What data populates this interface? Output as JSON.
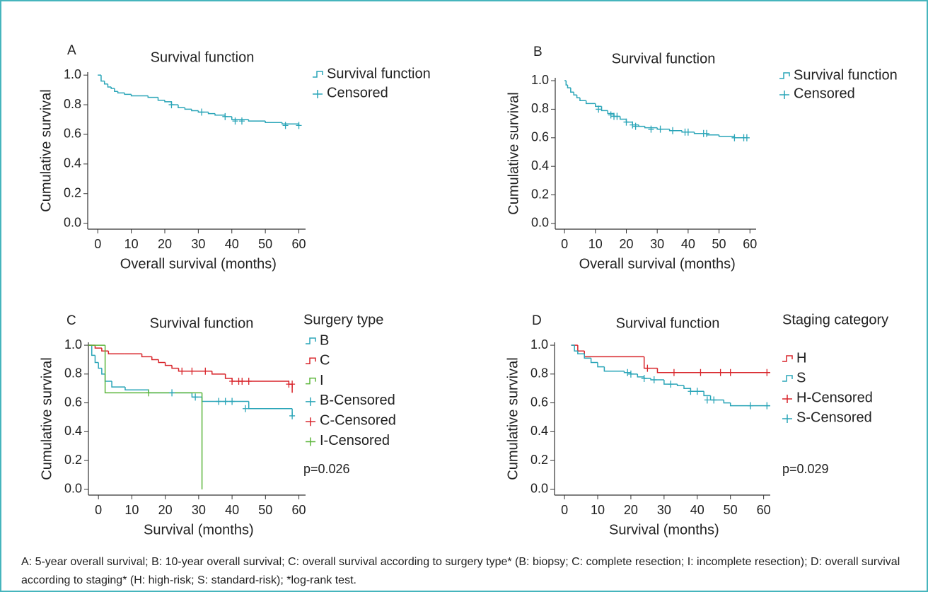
{
  "chart_data": [
    {
      "type": "step",
      "panel": "A",
      "title": "Survival function",
      "xlabel": "Overall survival (months)",
      "ylabel": "Cumulative survival",
      "xlim": [
        -3,
        62
      ],
      "ylim": [
        -0.04,
        1.02
      ],
      "xticks": [
        0,
        10,
        20,
        30,
        40,
        50,
        60
      ],
      "yticks": [
        {
          "value": 0,
          "label": "0.0"
        },
        0.2,
        0.4,
        0.6,
        0.8,
        {
          "value": 1,
          "label": "1.0"
        }
      ],
      "series": [
        {
          "name": "Survival function",
          "color": "#2aa5b8",
          "style": "step",
          "x": [
            0,
            1,
            2,
            3,
            4,
            5,
            6,
            8,
            10,
            15,
            18,
            20,
            22,
            24,
            26,
            28,
            30,
            33,
            35,
            38,
            40,
            45,
            50,
            55,
            60
          ],
          "values": [
            1.0,
            0.96,
            0.94,
            0.92,
            0.91,
            0.89,
            0.88,
            0.87,
            0.86,
            0.85,
            0.83,
            0.82,
            0.8,
            0.78,
            0.77,
            0.76,
            0.75,
            0.74,
            0.73,
            0.72,
            0.7,
            0.69,
            0.68,
            0.67,
            0.66
          ]
        },
        {
          "name": "Censored",
          "color": "#2aa5b8",
          "style": "plus",
          "x": [
            22,
            31,
            38,
            41,
            43,
            56,
            60
          ],
          "values": [
            0.8,
            0.75,
            0.72,
            0.69,
            0.69,
            0.66,
            0.66
          ]
        }
      ]
    },
    {
      "type": "step",
      "panel": "B",
      "title": "Survival function",
      "xlabel": "Overall survival (months)",
      "ylabel": "Cumulative survival",
      "xlim": [
        -3,
        62
      ],
      "ylim": [
        -0.04,
        1.02
      ],
      "xticks": [
        0,
        10,
        20,
        30,
        40,
        50,
        60
      ],
      "yticks": [
        {
          "value": 0,
          "label": "0.0"
        },
        0.2,
        0.4,
        0.6,
        0.8,
        {
          "value": 1,
          "label": "1.0"
        }
      ],
      "series": [
        {
          "name": "Survival function",
          "color": "#2aa5b8",
          "style": "step",
          "x": [
            0,
            0.5,
            1,
            2,
            3,
            4,
            5,
            7,
            10,
            12,
            14,
            16,
            18,
            20,
            22,
            24,
            26,
            30,
            34,
            38,
            42,
            46,
            50,
            55,
            59
          ],
          "values": [
            1.0,
            0.97,
            0.95,
            0.92,
            0.9,
            0.88,
            0.86,
            0.84,
            0.82,
            0.79,
            0.77,
            0.75,
            0.73,
            0.71,
            0.69,
            0.68,
            0.67,
            0.66,
            0.65,
            0.64,
            0.63,
            0.62,
            0.61,
            0.6,
            0.6
          ]
        },
        {
          "name": "Censored",
          "color": "#2aa5b8",
          "style": "plus",
          "x": [
            11,
            15,
            16,
            17,
            20,
            22,
            23,
            28,
            31,
            35,
            39,
            40,
            45,
            46,
            55,
            58,
            59
          ],
          "values": [
            0.8,
            0.76,
            0.75,
            0.75,
            0.71,
            0.69,
            0.68,
            0.66,
            0.66,
            0.65,
            0.64,
            0.64,
            0.63,
            0.63,
            0.6,
            0.6,
            0.6
          ]
        }
      ]
    },
    {
      "type": "step",
      "panel": "C",
      "title": "Survival function",
      "xlabel": "Survival (months)",
      "ylabel": "Cumulative survival",
      "legend_title": "Surgery type",
      "annotation": "p=0.026",
      "xlim": [
        -3,
        62
      ],
      "ylim": [
        -0.04,
        1.02
      ],
      "xticks": [
        0,
        10,
        20,
        30,
        40,
        50,
        60
      ],
      "yticks": [
        {
          "value": 0,
          "label": "0.0"
        },
        0.2,
        0.4,
        0.6,
        0.8,
        {
          "value": 1,
          "label": "1.0"
        }
      ],
      "series": [
        {
          "name": "B",
          "color": "#2aa5b8",
          "style": "step",
          "x": [
            -3,
            -2,
            -1,
            0,
            1,
            2,
            4,
            8,
            15,
            20,
            28,
            31,
            45,
            58
          ],
          "values": [
            1.0,
            0.93,
            0.88,
            0.84,
            0.8,
            0.75,
            0.71,
            0.69,
            0.67,
            0.67,
            0.64,
            0.61,
            0.56,
            0.51
          ]
        },
        {
          "name": "C",
          "color": "#d8242a",
          "style": "step",
          "x": [
            -3,
            -1,
            1,
            3,
            8,
            13,
            16,
            18,
            20,
            22,
            24,
            28,
            34,
            38,
            40,
            45,
            57,
            58
          ],
          "values": [
            1.0,
            0.98,
            0.96,
            0.94,
            0.94,
            0.92,
            0.9,
            0.88,
            0.86,
            0.84,
            0.82,
            0.82,
            0.8,
            0.77,
            0.75,
            0.75,
            0.73,
            0.67
          ]
        },
        {
          "name": "I",
          "color": "#5bb53a",
          "style": "step",
          "x": [
            -3,
            2,
            31
          ],
          "values": [
            1.0,
            0.67,
            0.0
          ]
        },
        {
          "name": "B-Censored",
          "color": "#2aa5b8",
          "style": "plus",
          "x": [
            22,
            29,
            36,
            38,
            40,
            44,
            58
          ],
          "values": [
            0.67,
            0.64,
            0.61,
            0.61,
            0.61,
            0.56,
            0.51
          ]
        },
        {
          "name": "C-Censored",
          "color": "#d8242a",
          "style": "plus",
          "x": [
            25,
            28,
            32,
            40,
            42,
            43,
            45,
            57,
            58
          ],
          "values": [
            0.82,
            0.82,
            0.82,
            0.75,
            0.75,
            0.75,
            0.75,
            0.73,
            0.73
          ]
        },
        {
          "name": "I-Censored",
          "color": "#5bb53a",
          "style": "plus",
          "x": [
            15
          ],
          "values": [
            0.67
          ]
        }
      ]
    },
    {
      "type": "step",
      "panel": "D",
      "title": "Survival function",
      "xlabel": "Survival (months)",
      "ylabel": "Cumulative survival",
      "legend_title": "Staging category",
      "annotation": "p=0.029",
      "xlim": [
        -3,
        62
      ],
      "ylim": [
        -0.04,
        1.02
      ],
      "xticks": [
        0,
        10,
        20,
        30,
        40,
        50,
        60
      ],
      "yticks": [
        {
          "value": 0,
          "label": "0.0"
        },
        0.2,
        0.4,
        0.6,
        0.8,
        {
          "value": 1,
          "label": "1.0"
        }
      ],
      "series": [
        {
          "name": "H",
          "color": "#d8242a",
          "style": "step",
          "x": [
            2,
            4,
            6,
            24,
            28,
            62
          ],
          "values": [
            1.0,
            0.96,
            0.92,
            0.84,
            0.81,
            0.81
          ]
        },
        {
          "name": "S",
          "color": "#2aa5b8",
          "style": "step",
          "x": [
            2,
            3,
            4,
            6,
            8,
            10,
            12,
            18,
            20,
            22,
            24,
            26,
            30,
            34,
            36,
            38,
            42,
            44,
            48,
            50,
            62
          ],
          "values": [
            1.0,
            0.96,
            0.94,
            0.91,
            0.88,
            0.85,
            0.82,
            0.81,
            0.8,
            0.78,
            0.77,
            0.76,
            0.73,
            0.72,
            0.7,
            0.68,
            0.65,
            0.62,
            0.6,
            0.58,
            0.58
          ]
        },
        {
          "name": "H-Censored",
          "color": "#d8242a",
          "style": "plus",
          "x": [
            25,
            33,
            41,
            47,
            50,
            61
          ],
          "values": [
            0.84,
            0.81,
            0.81,
            0.81,
            0.81,
            0.81
          ]
        },
        {
          "name": "S-Censored",
          "color": "#2aa5b8",
          "style": "plus",
          "x": [
            19,
            20,
            24,
            27,
            32,
            38,
            40,
            43,
            45,
            56,
            61
          ],
          "values": [
            0.81,
            0.8,
            0.77,
            0.76,
            0.73,
            0.68,
            0.68,
            0.62,
            0.62,
            0.58,
            0.58
          ]
        }
      ]
    }
  ],
  "caption": "A: 5-year overall survival; B: 10-year overall survival; C: overall survival according to surgery type* (B: biopsy; C: complete resection; I: incomplete resection); D: overall survival according to staging* (H: high-risk; S: standard-risk); *log-rank test."
}
